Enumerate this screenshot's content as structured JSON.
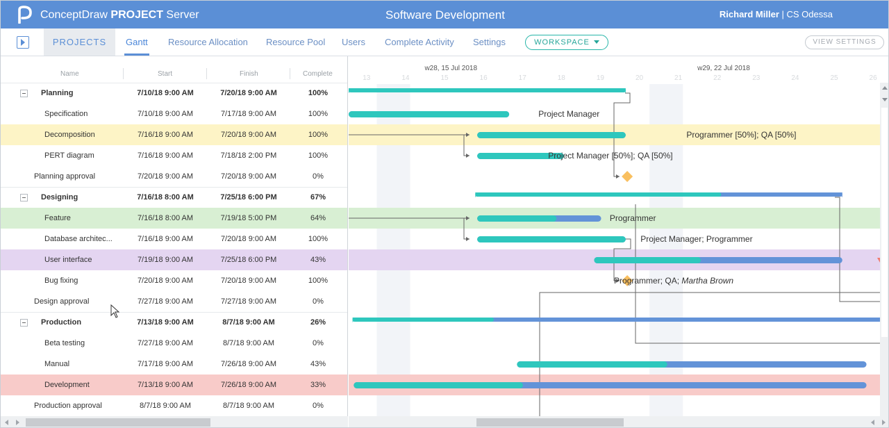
{
  "app": {
    "name_regular": "ConceptDraw",
    "name_bold": "PROJECT",
    "name_suffix": "Server",
    "document_title": "Software Development",
    "user_name": "Richard Miller",
    "separator": "|",
    "organization": "CS Odessa"
  },
  "nav": {
    "projects": "PROJECTS",
    "items": [
      "Gantt",
      "Resource Allocation",
      "Resource Pool",
      "Users",
      "Complete Activity",
      "Settings"
    ],
    "active_item": "Gantt",
    "workspace": "WORKSPACE",
    "view_settings": "VIEW SETTINGS"
  },
  "grid": {
    "columns": [
      "Name",
      "Start",
      "Finish",
      "Complete"
    ],
    "rows": [
      {
        "name": "Planning",
        "start": "7/10/18 9:00 AM",
        "finish": "7/20/18 9:00 AM",
        "complete": "100%",
        "level": 0,
        "summary": true
      },
      {
        "name": "Specification",
        "start": "7/10/18 9:00 AM",
        "finish": "7/17/18 9:00 AM",
        "complete": "100%",
        "level": 1,
        "summary": false
      },
      {
        "name": "Decomposition",
        "start": "7/16/18 9:00 AM",
        "finish": "7/20/18 9:00 AM",
        "complete": "100%",
        "level": 1,
        "summary": false,
        "highlight": "#fdf4c6"
      },
      {
        "name": "PERT diagram",
        "start": "7/16/18 9:00 AM",
        "finish": "7/18/18 2:00 PM",
        "complete": "100%",
        "level": 1,
        "summary": false
      },
      {
        "name": "Planning approval",
        "start": "7/20/18 9:00 AM",
        "finish": "7/20/18 9:00 AM",
        "complete": "0%",
        "level": 0,
        "summary": false
      },
      {
        "name": "Designing",
        "start": "7/16/18 8:00 AM",
        "finish": "7/25/18 6:00 PM",
        "complete": "67%",
        "level": 0,
        "summary": true
      },
      {
        "name": "Feature",
        "start": "7/16/18 8:00 AM",
        "finish": "7/19/18 5:00 PM",
        "complete": "64%",
        "level": 1,
        "summary": false,
        "highlight": "#d8efd3"
      },
      {
        "name": "Database architec...",
        "start": "7/16/18 9:00 AM",
        "finish": "7/20/18 9:00 AM",
        "complete": "100%",
        "level": 1,
        "summary": false
      },
      {
        "name": "User interface",
        "start": "7/19/18 9:00 AM",
        "finish": "7/25/18 6:00 PM",
        "complete": "43%",
        "level": 1,
        "summary": false,
        "highlight": "#e4d5f1"
      },
      {
        "name": "Bug fixing",
        "start": "7/20/18 9:00 AM",
        "finish": "7/20/18 9:00 AM",
        "complete": "100%",
        "level": 1,
        "summary": false
      },
      {
        "name": "Design approval",
        "start": "7/27/18 9:00 AM",
        "finish": "7/27/18 9:00 AM",
        "complete": "0%",
        "level": 0,
        "summary": false
      },
      {
        "name": "Production",
        "start": "7/13/18 9:00 AM",
        "finish": "8/7/18 9:00 AM",
        "complete": "26%",
        "level": 0,
        "summary": true
      },
      {
        "name": "Beta testing",
        "start": "7/27/18 9:00 AM",
        "finish": "8/7/18 9:00 AM",
        "complete": "0%",
        "level": 1,
        "summary": false
      },
      {
        "name": "Manual",
        "start": "7/17/18 9:00 AM",
        "finish": "7/26/18 9:00 AM",
        "complete": "43%",
        "level": 1,
        "summary": false
      },
      {
        "name": "Development",
        "start": "7/13/18 9:00 AM",
        "finish": "7/26/18 9:00 AM",
        "complete": "33%",
        "level": 1,
        "summary": false,
        "highlight": "#f8cbc9"
      },
      {
        "name": "Production approval",
        "start": "8/7/18 9:00 AM",
        "finish": "8/7/18 9:00 AM",
        "complete": "0%",
        "level": 0,
        "summary": false
      }
    ]
  },
  "timeline": {
    "weeks": [
      {
        "label": "w28, 15 Jul 2018",
        "day": 15
      },
      {
        "label": "w29, 22 Jul 2018",
        "day": 22
      }
    ],
    "day_numbers": [
      13,
      14,
      15,
      16,
      17,
      18,
      19,
      20,
      21,
      22,
      23,
      24,
      25,
      26
    ],
    "resource_labels": [
      {
        "row": 1,
        "day": 17.42,
        "parts": [
          {
            "text": "Project Manager",
            "italic": false
          }
        ]
      },
      {
        "row": 2,
        "day": 21.22,
        "parts": [
          {
            "text": "Programmer [50%]; QA [50%]",
            "italic": false
          }
        ]
      },
      {
        "row": 3,
        "day": 17.67,
        "parts": [
          {
            "text": "Project Manager [50%]; QA [50%]",
            "italic": false
          }
        ]
      },
      {
        "row": 6,
        "day": 19.25,
        "parts": [
          {
            "text": "Programmer",
            "italic": false
          }
        ]
      },
      {
        "row": 7,
        "day": 20.04,
        "parts": [
          {
            "text": "Project Manager; Programmer",
            "italic": false
          }
        ]
      },
      {
        "row": 9,
        "day": 19.36,
        "parts": [
          {
            "text": "Programmer; QA; ",
            "italic": false
          },
          {
            "text": "Martha Brown",
            "italic": true
          }
        ]
      }
    ]
  },
  "colors": {
    "header_bg": "#5b8fd6",
    "complete_bar": "#2ec7bd",
    "remaining_bar": "#6393d8",
    "milestone": "#f9bf5f",
    "weekend": "#f2f4f8",
    "link": "#666666"
  },
  "chart_data": {
    "type": "gantt",
    "day_axis": {
      "start_day": 12.55,
      "pixels_per_day": 56.1
    },
    "bars": [
      {
        "row": 0,
        "start": 12.55,
        "end": 19.66,
        "complete": 1.0,
        "summary": true
      },
      {
        "row": 1,
        "start": 12.55,
        "end": 16.67,
        "complete": 1.0
      },
      {
        "row": 2,
        "start": 15.85,
        "end": 19.66,
        "complete": 1.0
      },
      {
        "row": 3,
        "start": 15.85,
        "end": 18.07,
        "complete": 1.0
      },
      {
        "row": 5,
        "start": 15.8,
        "end": 25.22,
        "complete": 0.67,
        "summary": true
      },
      {
        "row": 6,
        "start": 15.85,
        "end": 19.03,
        "complete": 0.64
      },
      {
        "row": 7,
        "start": 15.85,
        "end": 19.66,
        "complete": 1.0
      },
      {
        "row": 8,
        "start": 18.85,
        "end": 25.22,
        "complete": 0.43
      },
      {
        "row": 11,
        "start": 12.65,
        "end": 26.6,
        "complete": 0.26,
        "summary": true
      },
      {
        "row": 13,
        "start": 16.87,
        "end": 25.84,
        "complete": 0.43
      },
      {
        "row": 14,
        "start": 12.68,
        "end": 25.84,
        "complete": 0.33
      }
    ],
    "milestones": [
      {
        "row": 4,
        "day": 19.7
      },
      {
        "row": 9,
        "day": 19.7
      }
    ]
  }
}
